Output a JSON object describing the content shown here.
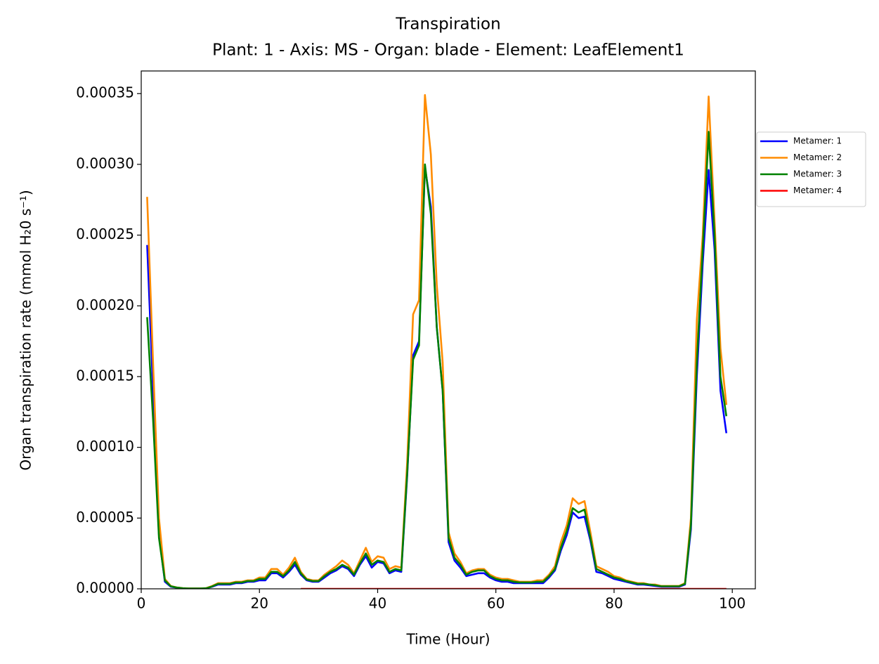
{
  "chart_data": {
    "type": "line",
    "title": "Transpiration",
    "subtitle": "Plant: 1 - Axis: MS - Organ: blade - Element: LeafElement1",
    "xlabel": "Time (Hour)",
    "ylabel": "Organ transpiration rate (mmol H₂0 s⁻¹)",
    "xlim": [
      0,
      103.9
    ],
    "ylim": [
      0,
      0.000366
    ],
    "xticks": [
      0,
      20,
      40,
      60,
      80,
      100
    ],
    "yticks": [
      {
        "value": 0,
        "label": "0.00000"
      },
      {
        "value": 5e-05,
        "label": "0.00005"
      },
      {
        "value": 0.0001,
        "label": "0.00010"
      },
      {
        "value": 0.00015,
        "label": "0.00015"
      },
      {
        "value": 0.0002,
        "label": "0.00020"
      },
      {
        "value": 0.00025,
        "label": "0.00025"
      },
      {
        "value": 0.0003,
        "label": "0.00030"
      },
      {
        "value": 0.00035,
        "label": "0.00035"
      }
    ],
    "grid": false,
    "legend": "outside right",
    "x": [
      1,
      2,
      3,
      4,
      5,
      6,
      7,
      8,
      9,
      10,
      11,
      12,
      13,
      14,
      15,
      16,
      17,
      18,
      19,
      20,
      21,
      22,
      23,
      24,
      25,
      26,
      27,
      28,
      29,
      30,
      31,
      32,
      33,
      34,
      35,
      36,
      37,
      38,
      39,
      40,
      41,
      42,
      43,
      44,
      45,
      46,
      47,
      48,
      49,
      50,
      51,
      52,
      53,
      54,
      55,
      56,
      57,
      58,
      59,
      60,
      61,
      62,
      63,
      64,
      65,
      66,
      67,
      68,
      69,
      70,
      71,
      72,
      73,
      74,
      75,
      76,
      77,
      78,
      79,
      80,
      81,
      82,
      83,
      84,
      85,
      86,
      87,
      88,
      89,
      90,
      91,
      92,
      93,
      94,
      95,
      96,
      97,
      98,
      99
    ],
    "series": [
      {
        "name": "Metamer: 1",
        "color": "#0000ff",
        "values": [
          0.000243,
          0.00014,
          3.8e-05,
          5e-06,
          1.5e-06,
          8e-07,
          4e-07,
          2e-07,
          2e-07,
          2e-07,
          4e-07,
          1.5e-06,
          3e-06,
          3e-06,
          3e-06,
          4e-06,
          4e-06,
          5e-06,
          5e-06,
          6e-06,
          6e-06,
          1.1e-05,
          1.1e-05,
          8e-06,
          1.2e-05,
          1.7e-05,
          1e-05,
          6e-06,
          5e-06,
          5e-06,
          8e-06,
          1.1e-05,
          1.3e-05,
          1.6e-05,
          1.4e-05,
          9e-06,
          1.7e-05,
          2.3e-05,
          1.5e-05,
          1.9e-05,
          1.8e-05,
          1.1e-05,
          1.3e-05,
          1.2e-05,
          8e-05,
          0.000165,
          0.000175,
          0.000298,
          0.00027,
          0.000185,
          0.00014,
          3.3e-05,
          2e-05,
          1.5e-05,
          9e-06,
          1e-05,
          1.1e-05,
          1.1e-05,
          8e-06,
          6e-06,
          5e-06,
          5e-06,
          4e-06,
          4e-06,
          4e-06,
          4e-06,
          4e-06,
          4e-06,
          8e-06,
          1.3e-05,
          2.7e-05,
          3.8e-05,
          5.4e-05,
          5e-05,
          5.1e-05,
          3.4e-05,
          1.2e-05,
          1.1e-05,
          9e-06,
          7e-06,
          6e-06,
          5e-06,
          4e-06,
          3e-06,
          3e-06,
          2.5e-06,
          2e-06,
          1.5e-06,
          1.5e-06,
          1.5e-06,
          1.5e-06,
          3e-06,
          4.2e-05,
          0.00015,
          0.00023,
          0.000296,
          0.00024,
          0.00014,
          0.00011
        ]
      },
      {
        "name": "Metamer: 2",
        "color": "#ff8c00",
        "values": [
          0.000277,
          0.00016,
          5e-05,
          7e-06,
          2e-06,
          1e-06,
          5e-07,
          3e-07,
          3e-07,
          3e-07,
          5e-07,
          2e-06,
          4e-06,
          4e-06,
          4e-06,
          5e-06,
          5e-06,
          6e-06,
          6e-06,
          8e-06,
          8e-06,
          1.4e-05,
          1.4e-05,
          1e-05,
          1.5e-05,
          2.2e-05,
          1.2e-05,
          7e-06,
          6e-06,
          6e-06,
          1e-05,
          1.3e-05,
          1.6e-05,
          2e-05,
          1.7e-05,
          1.1e-05,
          2e-05,
          2.9e-05,
          1.9e-05,
          2.3e-05,
          2.2e-05,
          1.4e-05,
          1.6e-05,
          1.5e-05,
          9e-05,
          0.000194,
          0.000204,
          0.000349,
          0.000307,
          0.000215,
          0.00016,
          4e-05,
          2.5e-05,
          1.9e-05,
          1.1e-05,
          1.3e-05,
          1.4e-05,
          1.4e-05,
          1e-05,
          8e-06,
          7e-06,
          7e-06,
          6e-06,
          5e-06,
          5e-06,
          5e-06,
          6e-06,
          6e-06,
          1e-05,
          1.6e-05,
          3.3e-05,
          4.5e-05,
          6.4e-05,
          6e-05,
          6.2e-05,
          4e-05,
          1.6e-05,
          1.4e-05,
          1.2e-05,
          9e-06,
          8e-06,
          6e-06,
          5e-06,
          4e-06,
          4e-06,
          3e-06,
          3e-06,
          2e-06,
          2e-06,
          2e-06,
          2e-06,
          4e-06,
          5e-05,
          0.00019,
          0.00025,
          0.000348,
          0.00026,
          0.00017,
          0.00013
        ]
      },
      {
        "name": "Metamer: 3",
        "color": "#008000",
        "values": [
          0.000192,
          0.00012,
          3.6e-05,
          6e-06,
          1.8e-06,
          9e-07,
          4e-07,
          2e-07,
          2e-07,
          2e-07,
          4e-07,
          1.7e-06,
          3.5e-06,
          3.5e-06,
          3.5e-06,
          4.5e-06,
          4.5e-06,
          5.5e-06,
          5.5e-06,
          7e-06,
          7e-06,
          1.2e-05,
          1.2e-05,
          9e-06,
          1.3e-05,
          1.9e-05,
          1.1e-05,
          6.5e-06,
          5.5e-06,
          5.5e-06,
          9e-06,
          1.2e-05,
          1.4e-05,
          1.7e-05,
          1.5e-05,
          1e-05,
          1.8e-05,
          2.5e-05,
          1.7e-05,
          2e-05,
          1.9e-05,
          1.2e-05,
          1.4e-05,
          1.3e-05,
          8.2e-05,
          0.000162,
          0.000172,
          0.0003,
          0.000265,
          0.000185,
          0.00014,
          3.6e-05,
          2.2e-05,
          1.7e-05,
          1e-05,
          1.2e-05,
          1.3e-05,
          1.3e-05,
          9e-06,
          7e-06,
          6e-06,
          6e-06,
          5e-06,
          4.5e-06,
          4.5e-06,
          4.5e-06,
          5e-06,
          5e-06,
          9e-06,
          1.4e-05,
          2.9e-05,
          4.1e-05,
          5.7e-05,
          5.4e-05,
          5.6e-05,
          3.6e-05,
          1.4e-05,
          1.2e-05,
          1e-05,
          8e-06,
          7e-06,
          5.5e-06,
          4.5e-06,
          3.5e-06,
          3.5e-06,
          3e-06,
          2.5e-06,
          1.8e-06,
          1.8e-06,
          1.8e-06,
          1.8e-06,
          3.5e-06,
          4.5e-05,
          0.00016,
          0.00024,
          0.000323,
          0.00025,
          0.00015,
          0.000122
        ]
      },
      {
        "name": "Metamer: 4",
        "color": "#ff0000",
        "values": [
          null,
          null,
          null,
          null,
          null,
          null,
          null,
          null,
          null,
          null,
          null,
          null,
          null,
          null,
          null,
          null,
          null,
          null,
          null,
          null,
          null,
          null,
          null,
          null,
          null,
          null,
          0,
          0,
          0,
          0,
          0,
          0,
          0,
          0,
          0,
          0,
          0,
          0,
          0,
          0,
          0,
          0,
          0,
          0,
          0,
          0,
          0,
          0,
          0,
          0,
          0,
          0,
          0,
          0,
          0,
          0,
          0,
          0,
          0,
          0,
          0,
          0,
          0,
          0,
          0,
          0,
          0,
          0,
          0,
          0,
          0,
          0,
          0,
          0,
          0,
          0,
          0,
          0,
          0,
          0,
          0,
          0,
          0,
          0,
          0,
          0,
          0,
          0,
          0,
          0,
          0,
          0,
          0,
          0,
          0,
          0,
          0,
          0,
          0
        ]
      }
    ]
  }
}
